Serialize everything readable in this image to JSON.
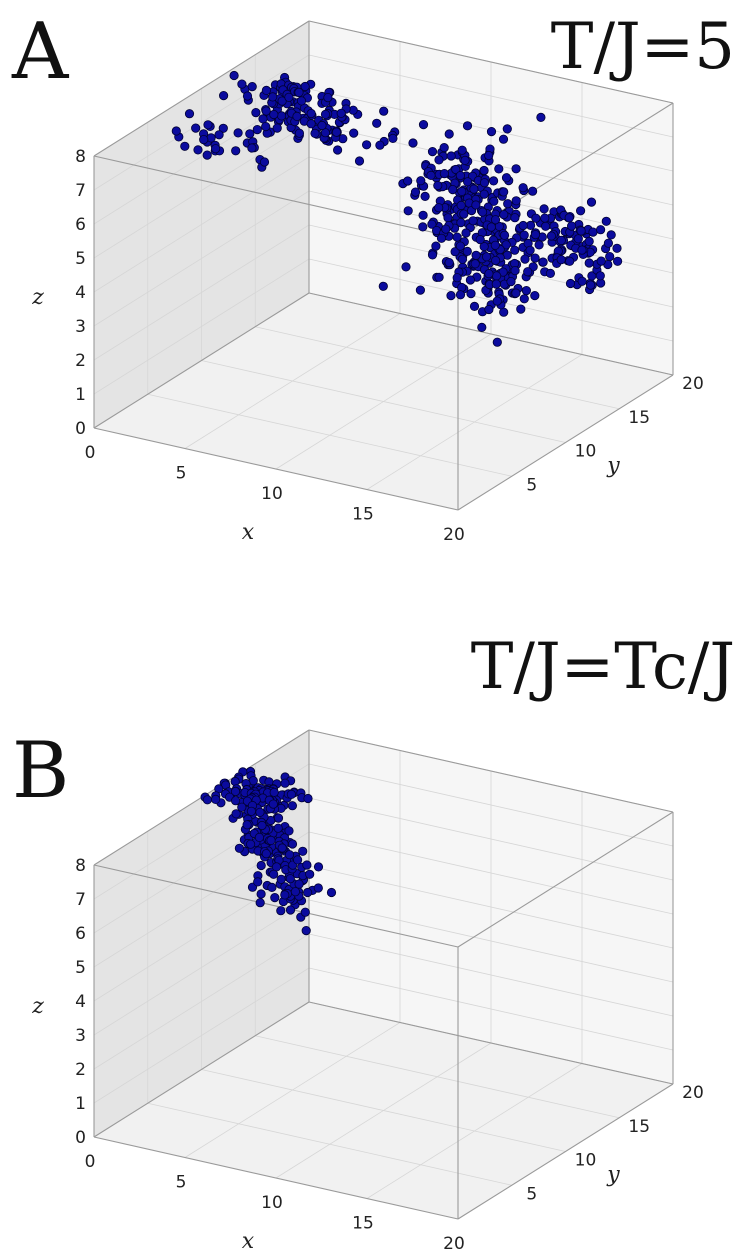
{
  "panels": [
    {
      "letter": "A",
      "title": "T/J=5",
      "chart_data": {
        "type": "scatter",
        "projection": "3d",
        "xlabel": "x",
        "ylabel": "y",
        "zlabel": "z",
        "xlim": [
          0,
          20
        ],
        "ylim": [
          0,
          20
        ],
        "zlim": [
          0,
          8
        ],
        "xticks": [
          0,
          5,
          10,
          15,
          20
        ],
        "yticks": [
          5,
          10,
          15,
          20
        ],
        "zticks": [
          0,
          1,
          2,
          3,
          4,
          5,
          6,
          7,
          8
        ],
        "grid": true,
        "marker_color": "#0b0b9e",
        "clusters": [
          {
            "center": [
              4.0,
              12.0,
              7.6
            ],
            "count": 120,
            "spread": [
              1.3,
              1.0,
              0.45
            ]
          },
          {
            "center": [
              1.5,
              9.0,
              6.9
            ],
            "count": 30,
            "spread": [
              1.8,
              1.0,
              0.25
            ]
          },
          {
            "center": [
              6.0,
              13.5,
              6.8
            ],
            "count": 25,
            "spread": [
              1.8,
              0.8,
              0.3
            ]
          },
          {
            "center": [
              9.5,
              16.0,
              5.6
            ],
            "count": 25,
            "spread": [
              1.0,
              0.8,
              0.5
            ]
          },
          {
            "center": [
              10.5,
              17.0,
              3.8
            ],
            "count": 130,
            "spread": [
              1.2,
              1.5,
              0.9
            ]
          },
          {
            "center": [
              12.0,
              17.5,
              2.3
            ],
            "count": 70,
            "spread": [
              1.0,
              1.2,
              0.5
            ]
          },
          {
            "center": [
              9.5,
              19.5,
              4.3
            ],
            "count": 90,
            "spread": [
              1.5,
              0.8,
              0.8
            ]
          },
          {
            "center": [
              14.5,
              19.5,
              3.2
            ],
            "count": 120,
            "spread": [
              1.3,
              0.8,
              0.6
            ]
          }
        ]
      }
    },
    {
      "letter": "B",
      "title": "T/J=Tc/J",
      "chart_data": {
        "type": "scatter",
        "projection": "3d",
        "xlabel": "x",
        "ylabel": "y",
        "zlabel": "z",
        "xlim": [
          0,
          20
        ],
        "ylim": [
          0,
          20
        ],
        "zlim": [
          0,
          8
        ],
        "xticks": [
          0,
          5,
          10,
          15,
          20
        ],
        "yticks": [
          5,
          10,
          15,
          20
        ],
        "zticks": [
          0,
          1,
          2,
          3,
          4,
          5,
          6,
          7,
          8
        ],
        "grid": true,
        "marker_color": "#0b0b9e",
        "clusters": [
          {
            "center": [
              1.5,
              12.0,
              8.2
            ],
            "count": 80,
            "spread": [
              1.0,
              1.0,
              0.3
            ]
          },
          {
            "center": [
              2.0,
              12.0,
              7.4
            ],
            "count": 60,
            "spread": [
              0.6,
              0.8,
              0.4
            ]
          },
          {
            "center": [
              2.5,
              12.0,
              6.6
            ],
            "count": 60,
            "spread": [
              0.5,
              0.6,
              0.4
            ]
          },
          {
            "center": [
              4.0,
              11.5,
              5.6
            ],
            "count": 70,
            "spread": [
              0.6,
              0.6,
              0.5
            ]
          }
        ]
      }
    }
  ]
}
